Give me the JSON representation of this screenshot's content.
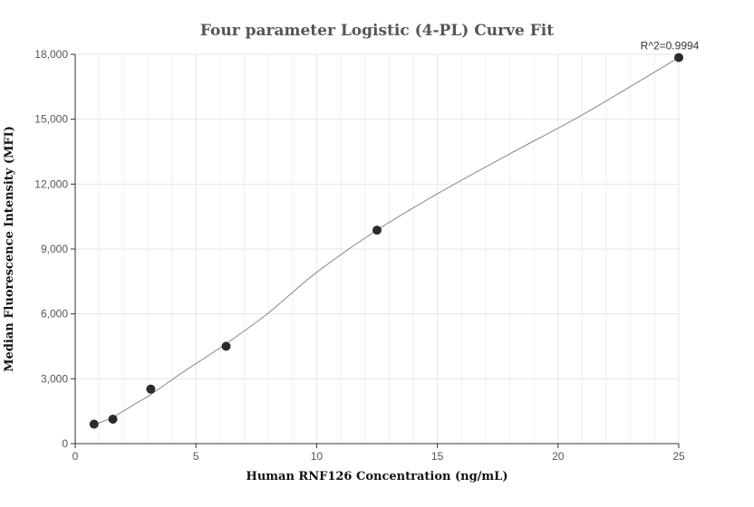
{
  "chart_data": {
    "type": "scatter",
    "title": "Four parameter Logistic (4-PL) Curve Fit",
    "xlabel": "Human RNF126 Concentration (ng/mL)",
    "ylabel": "Median Fluorescence Intensity (MFI)",
    "xlim": [
      0,
      25
    ],
    "ylim": [
      0,
      18000
    ],
    "x_ticks": [
      0,
      5,
      10,
      15,
      20,
      25
    ],
    "x_tick_labels": [
      "0",
      "5",
      "10",
      "15",
      "20",
      "25"
    ],
    "y_ticks": [
      0,
      3000,
      6000,
      9000,
      12000,
      15000,
      18000
    ],
    "y_tick_labels": [
      "0",
      "3,000",
      "6,000",
      "9,000",
      "12,000",
      "15,000",
      "18,000"
    ],
    "grid": true,
    "annotation": "R^2=0.9994",
    "points": {
      "x": [
        0.78,
        1.56,
        3.13,
        6.25,
        12.5,
        25
      ],
      "y": [
        900,
        1130,
        2520,
        4500,
        9870,
        17850
      ]
    },
    "fit_curve": {
      "x": [
        0.78,
        1.56,
        2.5,
        3.13,
        4.5,
        6.25,
        8,
        10,
        12.5,
        15,
        18,
        21,
        25
      ],
      "y": [
        870,
        1220,
        1850,
        2270,
        3330,
        4620,
        6040,
        7920,
        9870,
        11550,
        13400,
        15200,
        17850
      ]
    },
    "colors": {
      "points": "#2b2b2b",
      "curve": "#888888",
      "grid": "#e6e6e6",
      "axis": "#333333"
    }
  }
}
